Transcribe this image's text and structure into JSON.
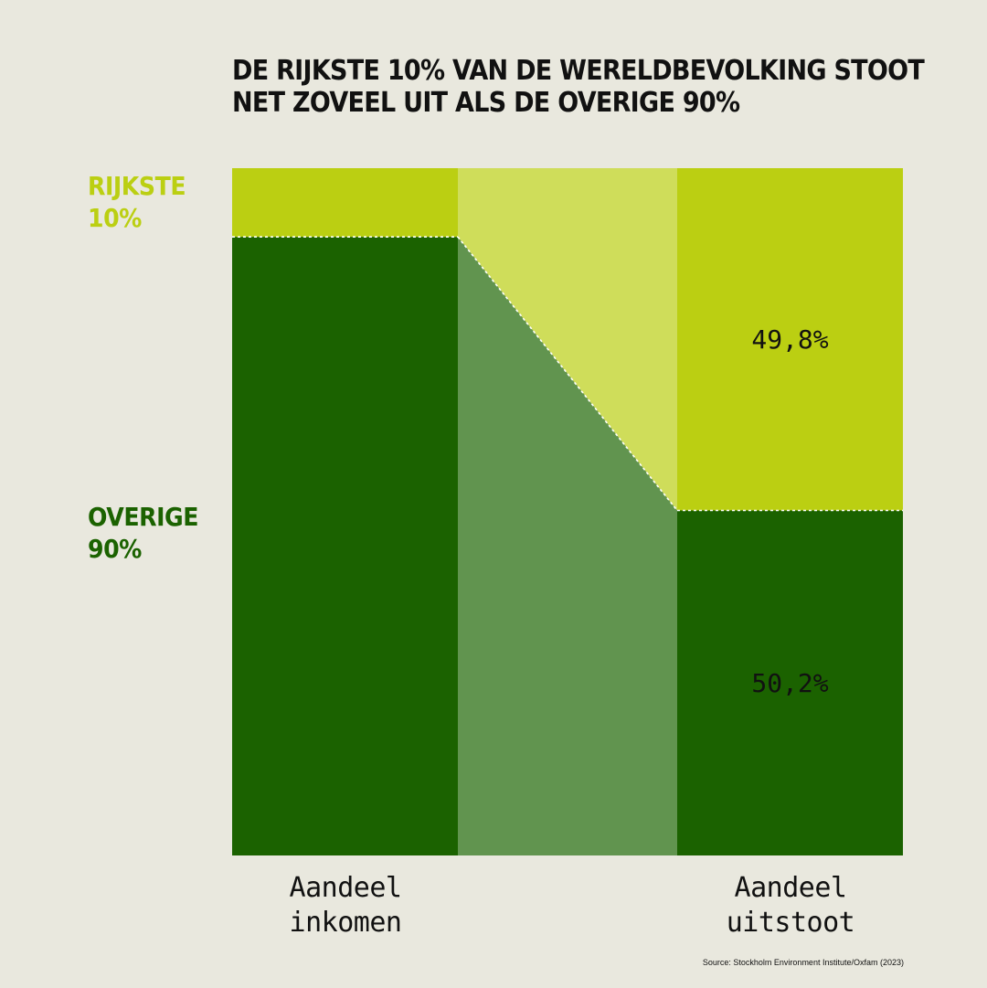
{
  "title_lines": [
    "DE RIJKSTE 10% VAN DE WERELDBEVOLKING STOOT",
    "NET ZOVEEL UIT ALS DE OVERIGE 90%"
  ],
  "groups": {
    "rich": {
      "lines": [
        "RIJKSTE",
        "10%"
      ]
    },
    "rest": {
      "lines": [
        "OVERIGE",
        "90%"
      ]
    }
  },
  "axis": {
    "income": {
      "lines": [
        "Aandeel",
        "inkomen"
      ]
    },
    "emissions": {
      "lines": [
        "Aandeel",
        "uitstoot"
      ]
    }
  },
  "source": "Source: Stockholm Environment Institute/Oxfam (2023)",
  "colors": {
    "rich": "#bbcf12",
    "rich_light": "#cfdd5a",
    "rest": "#1b6200",
    "rest_light": "#61944f",
    "background": "#e9e8de"
  },
  "chart_data": {
    "type": "bar",
    "stacked": true,
    "categories": [
      "Aandeel inkomen",
      "Aandeel uitstoot"
    ],
    "series": [
      {
        "name": "OVERIGE 90%",
        "values": [
          90,
          50.2
        ]
      },
      {
        "name": "RIJKSTE 10%",
        "values": [
          10,
          49.8
        ]
      }
    ],
    "data_labels": [
      "49,8%",
      "50,2%"
    ],
    "ylim": [
      0,
      100
    ],
    "grid": false,
    "legend": "left"
  }
}
